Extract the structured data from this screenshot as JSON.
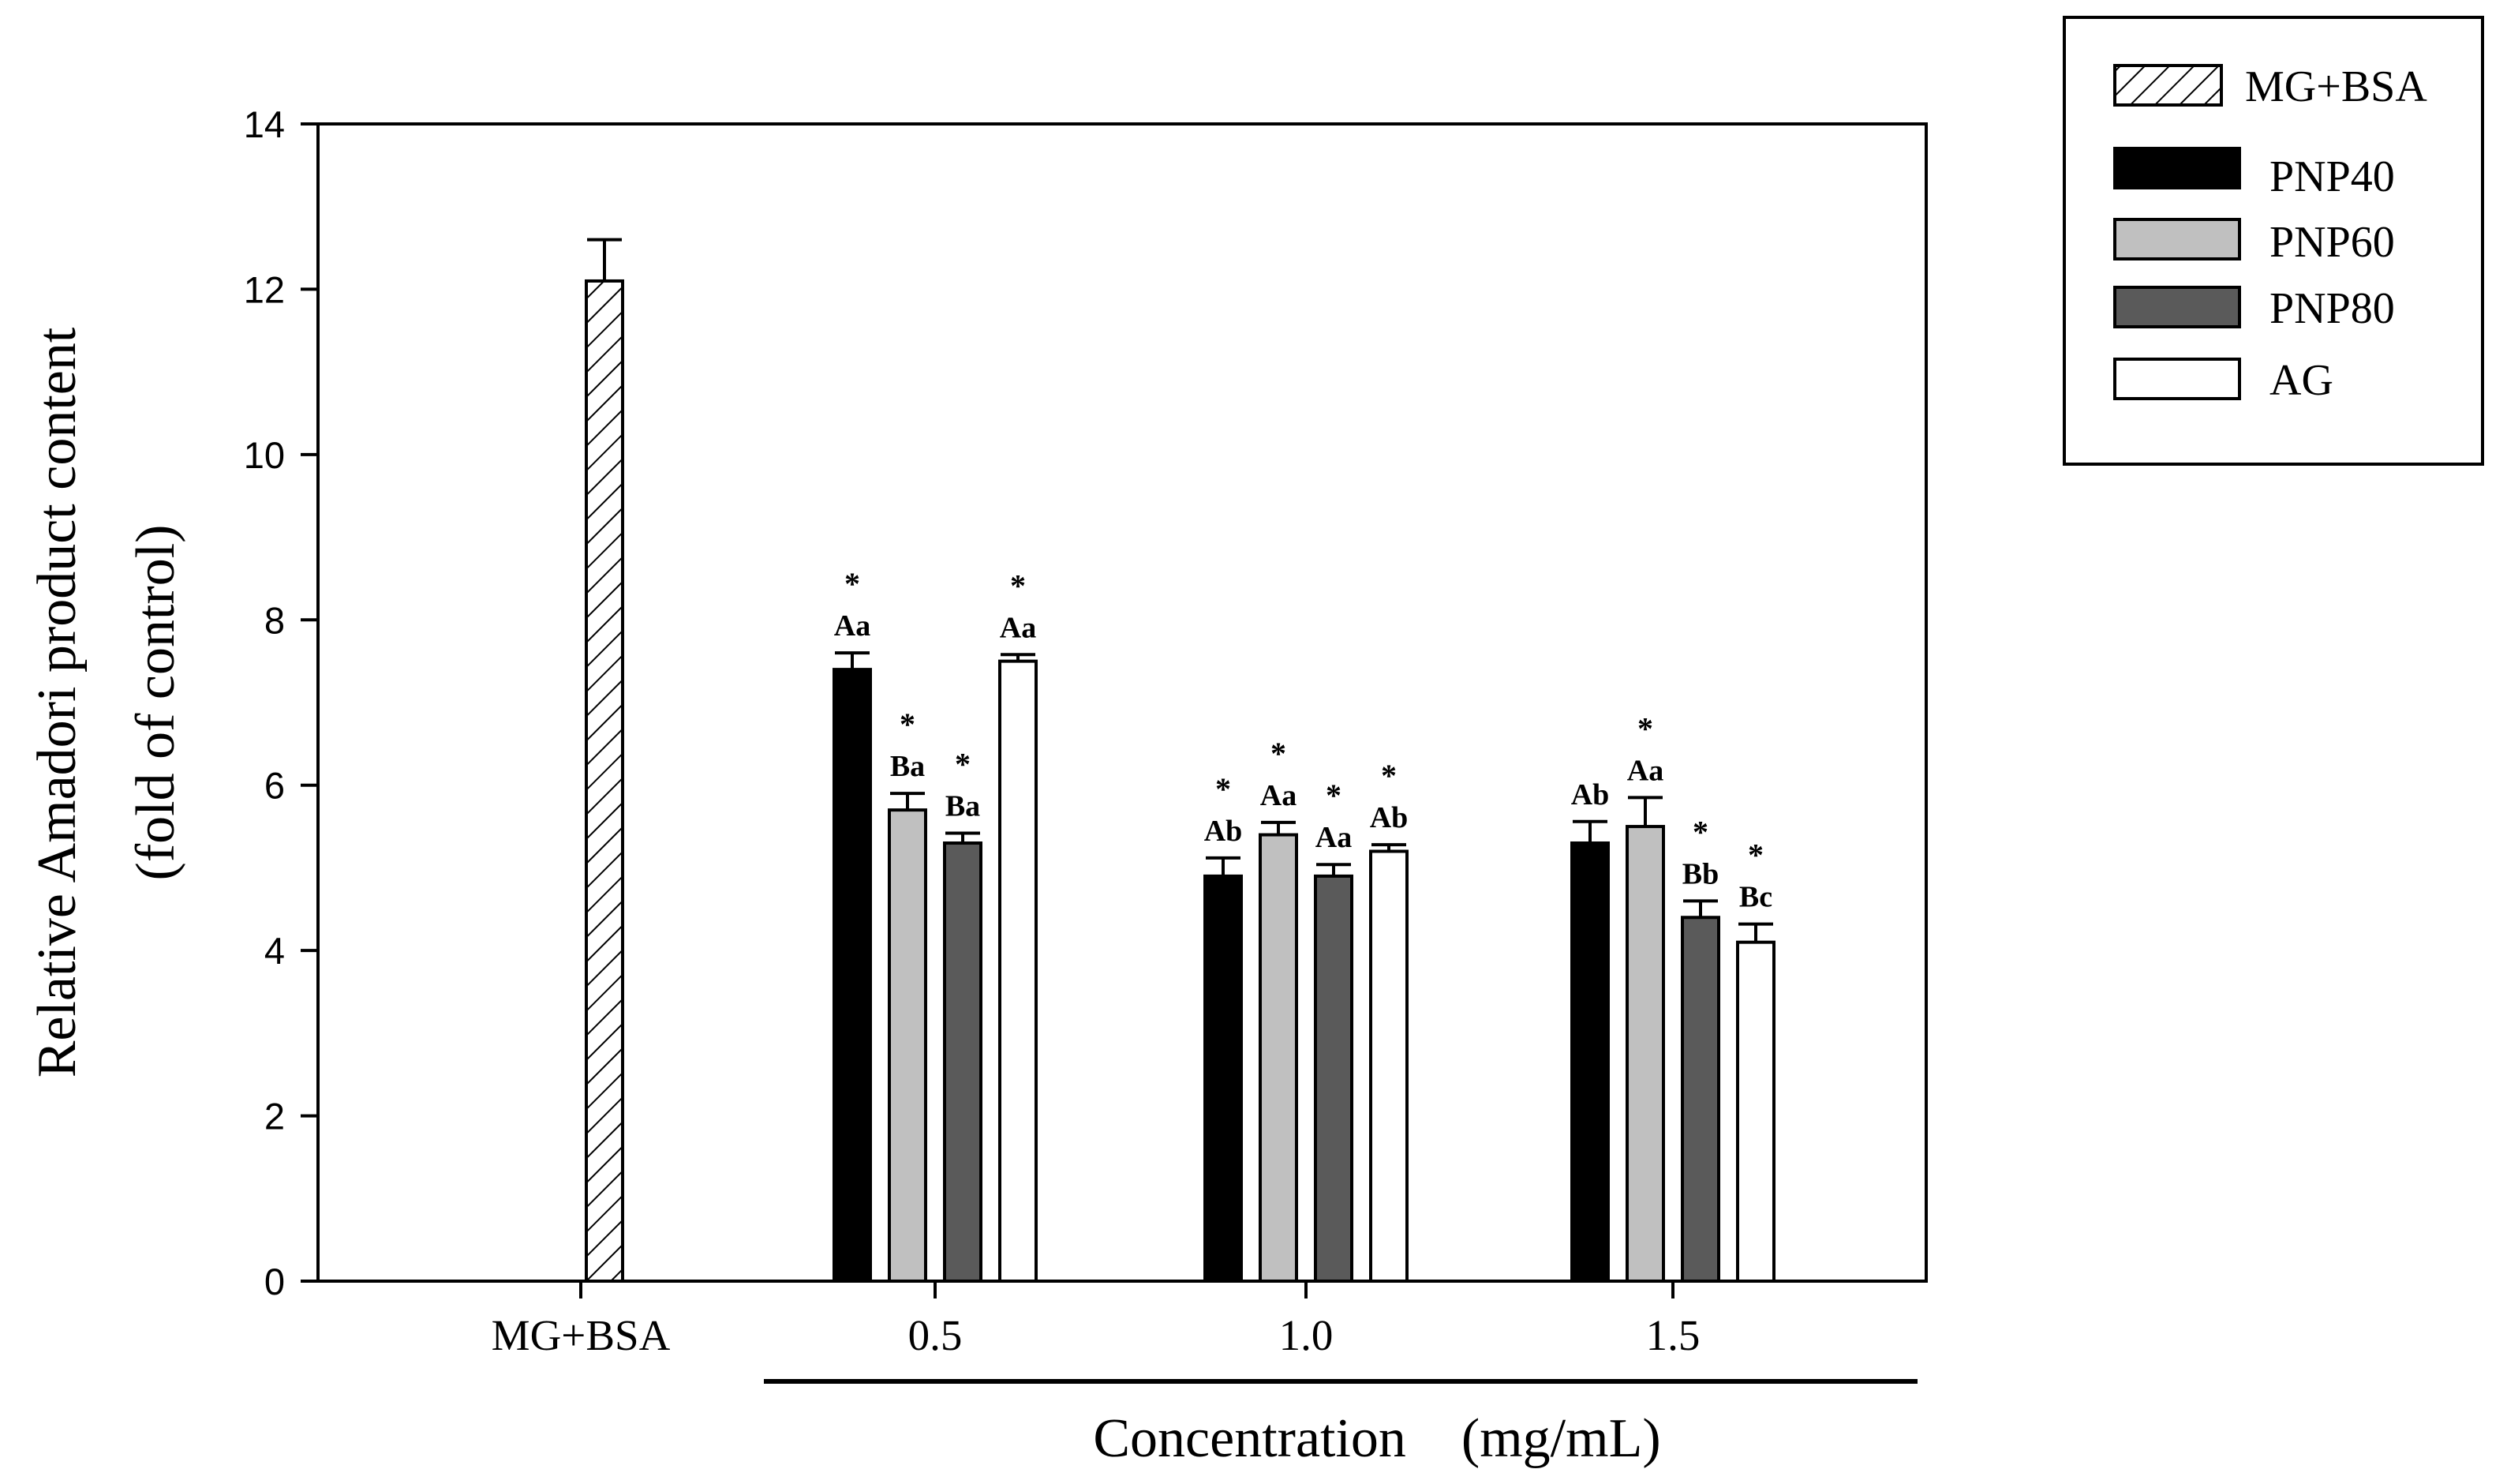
{
  "chart_data": {
    "type": "bar",
    "ylabel_line1": "Relative Amadori product content",
    "ylabel_line2": "(fold of control)",
    "xlabel": "Concentration　(mg/mL)",
    "ylim": [
      0,
      14
    ],
    "yticks": [
      "0",
      "2",
      "4",
      "6",
      "8",
      "10",
      "12",
      "14"
    ],
    "categories": [
      "MG+BSA",
      "0.5",
      "1.0",
      "1.5"
    ],
    "series": [
      {
        "name": "MG+BSA",
        "style": "hatch",
        "color": "#ffffff",
        "values": [
          12.1,
          null,
          null,
          null
        ],
        "errors": [
          0.5,
          null,
          null,
          null
        ],
        "labels": [
          "",
          "",
          "",
          ""
        ],
        "stars": [
          false,
          false,
          false,
          false
        ]
      },
      {
        "name": "PNP40",
        "style": "solid",
        "color": "#000000",
        "values": [
          null,
          7.4,
          4.9,
          5.3
        ],
        "errors": [
          null,
          0.2,
          0.22,
          0.26
        ],
        "labels": [
          "",
          "Aa",
          "Ab",
          "Ab"
        ],
        "stars": [
          false,
          true,
          true,
          false
        ]
      },
      {
        "name": "PNP60",
        "style": "solid",
        "color": "#c0c0c0",
        "values": [
          null,
          5.7,
          5.4,
          5.5
        ],
        "errors": [
          null,
          0.2,
          0.15,
          0.35
        ],
        "labels": [
          "",
          "Ba",
          "Aa",
          "Aa"
        ],
        "stars": [
          false,
          true,
          true,
          true
        ]
      },
      {
        "name": "PNP80",
        "style": "solid",
        "color": "#5a5a5a",
        "values": [
          null,
          5.3,
          4.9,
          4.4
        ],
        "errors": [
          null,
          0.12,
          0.14,
          0.2
        ],
        "labels": [
          "",
          "Ba",
          "Aa",
          "Bb"
        ],
        "stars": [
          false,
          true,
          true,
          true
        ]
      },
      {
        "name": "AG",
        "style": "solid",
        "color": "#ffffff",
        "values": [
          null,
          7.5,
          5.2,
          4.1
        ],
        "errors": [
          null,
          0.08,
          0.08,
          0.22
        ],
        "labels": [
          "",
          "Aa",
          "Ab",
          "Bc"
        ],
        "stars": [
          false,
          true,
          true,
          true
        ]
      }
    ],
    "legend": [
      "MG+BSA",
      "PNP40",
      "PNP60",
      "PNP80",
      "AG"
    ],
    "legend_position": "top-right",
    "grid": false
  }
}
